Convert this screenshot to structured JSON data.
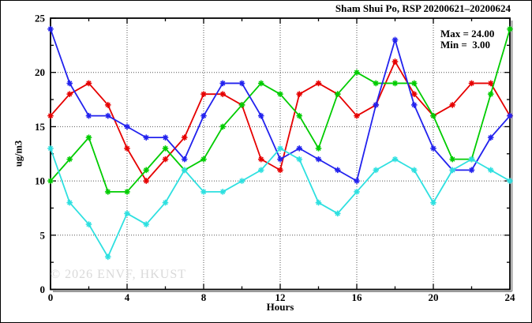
{
  "title": "Sham Shui Po, RSP 20200621–20200624",
  "annotation": {
    "max_label": "Max = 24.00",
    "min_label": "Min =  3.00"
  },
  "watermark": "© 2026 ENVF, HKUST",
  "chart_data": {
    "type": "line",
    "title": "Sham Shui Po, RSP 20200621–20200624",
    "xlabel": "Hours",
    "ylabel": "ug/m3",
    "xlim": [
      0,
      24
    ],
    "ylim": [
      0,
      25
    ],
    "x_major_ticks": [
      0,
      4,
      8,
      12,
      16,
      20,
      24
    ],
    "x_minor_step": 2,
    "y_major_ticks": [
      0,
      5,
      10,
      15,
      20,
      25
    ],
    "y_minor_step": 2.5,
    "grid": "dotted-at-major-ticks",
    "legend_position": "none",
    "marker": "asterisk",
    "x": [
      0,
      1,
      2,
      3,
      4,
      5,
      6,
      7,
      8,
      9,
      10,
      11,
      12,
      13,
      14,
      15,
      16,
      17,
      18,
      19,
      20,
      21,
      22,
      23,
      24
    ],
    "series": [
      {
        "name": "series-red",
        "color": "#e60000",
        "values": [
          16,
          18,
          19,
          17,
          13,
          10,
          12,
          14,
          18,
          18,
          17,
          12,
          11,
          18,
          19,
          18,
          16,
          17,
          21,
          18,
          16,
          17,
          19,
          19,
          16
        ]
      },
      {
        "name": "series-green",
        "color": "#00cc00",
        "values": [
          10,
          12,
          14,
          9,
          9,
          11,
          13,
          11,
          12,
          15,
          17,
          19,
          18,
          16,
          13,
          18,
          20,
          19,
          19,
          19,
          16,
          12,
          12,
          18,
          24
        ]
      },
      {
        "name": "series-blue",
        "color": "#2222ee",
        "values": [
          24,
          19,
          16,
          16,
          15,
          14,
          14,
          12,
          16,
          19,
          19,
          16,
          12,
          13,
          12,
          11,
          10,
          17,
          23,
          17,
          13,
          11,
          11,
          14,
          16
        ]
      },
      {
        "name": "series-cyan",
        "color": "#2ee0e0",
        "values": [
          13,
          8,
          6,
          3,
          7,
          6,
          8,
          11,
          9,
          9,
          10,
          11,
          13,
          12,
          8,
          7,
          9,
          11,
          12,
          11,
          8,
          11,
          12,
          11,
          10
        ]
      }
    ],
    "stats": {
      "max": 24.0,
      "min": 3.0
    }
  }
}
